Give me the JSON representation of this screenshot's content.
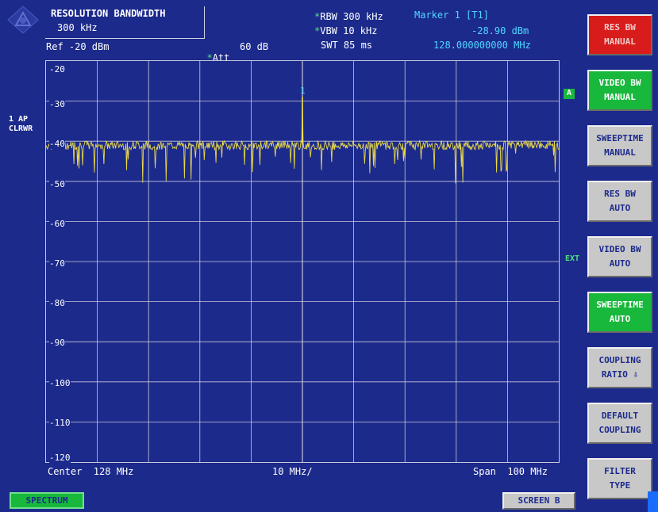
{
  "header": {
    "title": "RESOLUTION BANDWIDTH",
    "value": "300 kHz",
    "ref_level": "Ref -20 dBm",
    "att_star": "*",
    "att_label": "Att",
    "att_value": "60 dB",
    "rbw_star": "*",
    "rbw": "RBW 300 kHz",
    "vbw_star": "*",
    "vbw": "VBW 10 kHz",
    "swt": "SWT 85 ms",
    "marker_name": "Marker 1 [T1]",
    "marker_level": "-28.90 dBm",
    "marker_freq": "128.000000000 MHz"
  },
  "trace": {
    "line1": "1 AP",
    "line2": "CLRWR",
    "marker_number": "1",
    "color": "#e8d84a",
    "marker_color": "#4fd8ff"
  },
  "grid": {
    "color": "#c8c8d8",
    "background": "#1c2a8c"
  },
  "y_axis": {
    "labels": [
      "-20",
      "-30",
      "-40",
      "-50",
      "-60",
      "-70",
      "-80",
      "-90",
      "-100",
      "-110",
      "-120"
    ],
    "range_dbm": [
      -120,
      -20
    ],
    "noise_floor_dbm": -41,
    "peak_dbm": -28.9
  },
  "x_axis": {
    "center": "Center  128 MHz",
    "div": "10 MHz/",
    "span": "Span  100 MHz",
    "divisions": 10
  },
  "flags": {
    "a": "A",
    "ext": "EXT"
  },
  "softkeys": [
    {
      "line1": "RES BW",
      "line2": "MANUAL",
      "style": "red"
    },
    {
      "line1": "VIDEO BW",
      "line2": "MANUAL",
      "style": "green"
    },
    {
      "line1": "SWEEPTIME",
      "line2": "MANUAL",
      "style": "gray"
    },
    {
      "line1": "RES BW",
      "line2": "AUTO",
      "style": "gray"
    },
    {
      "line1": "VIDEO BW",
      "line2": "AUTO",
      "style": "gray"
    },
    {
      "line1": "SWEEPTIME",
      "line2": "AUTO",
      "style": "green"
    },
    {
      "line1": "COUPLING",
      "line2": "RATIO ⇩",
      "style": "gray"
    },
    {
      "line1": "DEFAULT",
      "line2": "COUPLING",
      "style": "gray"
    },
    {
      "line1": "FILTER",
      "line2": "TYPE",
      "style": "gray"
    }
  ],
  "tabs": {
    "spectrum": "SPECTRUM",
    "screen_b": "SCREEN B"
  },
  "icons": {
    "logo": "rohde-schwarz-logo-icon"
  }
}
